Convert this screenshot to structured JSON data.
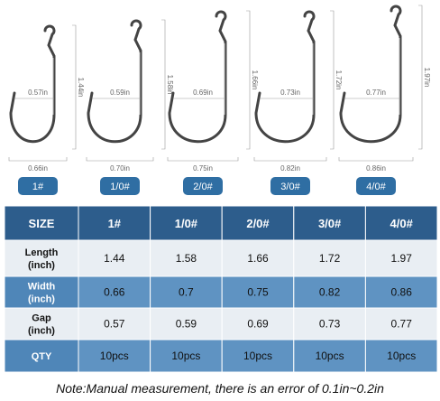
{
  "hooks": [
    {
      "size": "1#",
      "length": "1.44in",
      "width": "0.66in",
      "gap": "0.57in"
    },
    {
      "size": "1/0#",
      "length": "1.58in",
      "width": "0.70in",
      "gap": "0.59in"
    },
    {
      "size": "2/0#",
      "length": "1.66in",
      "width": "0.75in",
      "gap": "0.69in"
    },
    {
      "size": "3/0#",
      "length": "1.72in",
      "width": "0.82in",
      "gap": "0.73in"
    },
    {
      "size": "4/0#",
      "length": "1.97in",
      "width": "0.86in",
      "gap": "0.77in"
    }
  ],
  "table": {
    "header": [
      "SIZE",
      "1#",
      "1/0#",
      "2/0#",
      "3/0#",
      "4/0#"
    ],
    "rows": [
      {
        "label": [
          "Length",
          "(inch)"
        ],
        "cells": [
          "1.44",
          "1.58",
          "1.66",
          "1.72",
          "1.97"
        ]
      },
      {
        "label": [
          "Width",
          "(inch)"
        ],
        "cells": [
          "0.66",
          "0.7",
          "0.75",
          "0.82",
          "0.86"
        ]
      },
      {
        "label": [
          "Gap",
          "(inch)"
        ],
        "cells": [
          "0.57",
          "0.59",
          "0.69",
          "0.73",
          "0.77"
        ]
      },
      {
        "label": [
          "QTY"
        ],
        "cells": [
          "10pcs",
          "10pcs",
          "10pcs",
          "10pcs",
          "10pcs"
        ]
      }
    ]
  },
  "note": "Note:Manual measurement, there is an error of 0.1in~0.2in"
}
